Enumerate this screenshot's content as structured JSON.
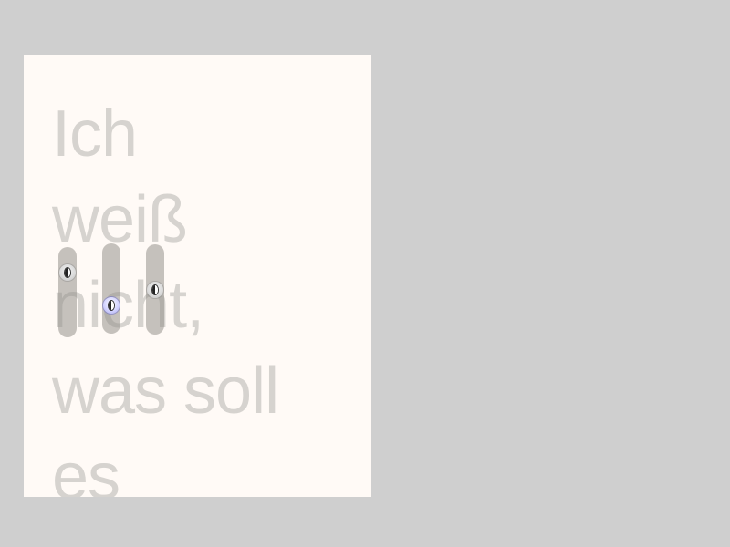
{
  "poem": {
    "lines": [
      "Ich",
      "weiß",
      "nicht,",
      "was soll",
      "es"
    ]
  },
  "sliders": [
    {
      "name": "slider-1",
      "icon": "eye-icon",
      "state": "normal",
      "value": 0.2
    },
    {
      "name": "slider-2",
      "icon": "eye-icon",
      "state": "active",
      "value": 0.75
    },
    {
      "name": "slider-3",
      "icon": "eye-icon",
      "state": "normal",
      "value": 0.5
    }
  ],
  "colors": {
    "background": "#cfcfcf",
    "panel": "#fffaf6",
    "text": "#d6d3cf",
    "track": "#96928c",
    "active_knob": "#d4d4ff"
  }
}
